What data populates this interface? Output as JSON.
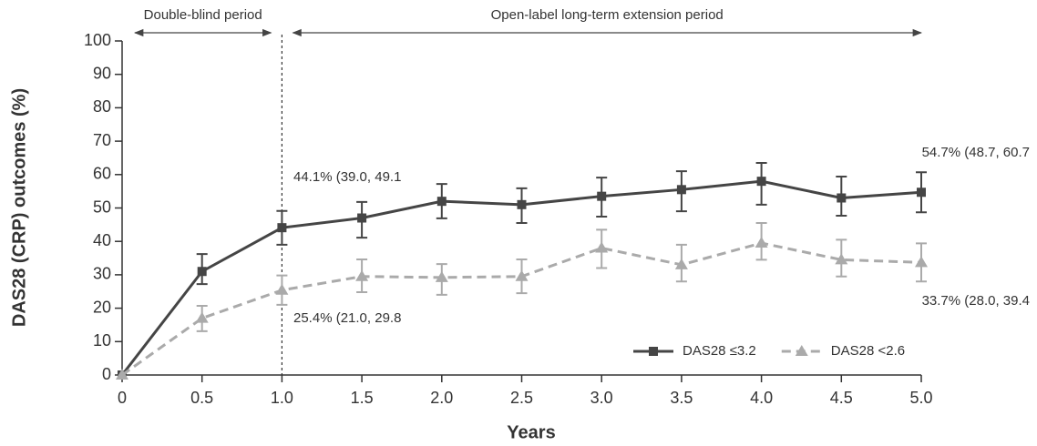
{
  "chart_data": {
    "type": "line",
    "x_label": "Years",
    "y_label": "DAS28 (CRP) outcomes (%)",
    "x": [
      0,
      0.5,
      1,
      1.5,
      2,
      2.5,
      3,
      3.5,
      4,
      4.5,
      5
    ],
    "series": [
      {
        "name": "DAS28 ≤3.2",
        "color": "#454545",
        "marker": "square",
        "dashed": false,
        "values": [
          0,
          31,
          44.1,
          47,
          52,
          51,
          53.5,
          55.5,
          58,
          53,
          54.7
        ],
        "lower": [
          null,
          27.2,
          39.0,
          41.1,
          46.9,
          45.5,
          47.4,
          49,
          51,
          47.7,
          48.7
        ],
        "upper": [
          null,
          36.2,
          49.1,
          51.8,
          57.2,
          55.9,
          59.1,
          61,
          63.5,
          59.4,
          60.7
        ]
      },
      {
        "name": "DAS28 <2.6",
        "color": "#aaaaaa",
        "marker": "triangle",
        "dashed": true,
        "values": [
          0,
          17,
          25.4,
          29.5,
          29.2,
          29.5,
          38,
          33,
          39.5,
          34.5,
          33.7
        ],
        "lower": [
          null,
          13.1,
          21.0,
          24.8,
          24,
          24.5,
          32,
          28,
          34.5,
          29.5,
          28.0
        ],
        "upper": [
          null,
          20.7,
          29.8,
          34.6,
          33.2,
          34.6,
          43.5,
          39,
          45.5,
          40.5,
          39.4
        ]
      }
    ],
    "annotations": [
      "44.1% (39.0, 49.1",
      "25.4% (21.0, 29.8",
      "54.7% (48.7, 60.7",
      "33.7% (28.0, 39.4"
    ],
    "periods": [
      {
        "label": "Double-blind period",
        "start": 0,
        "end": 1
      },
      {
        "label": "Open-label long-term extension period",
        "start": 1,
        "end": 5
      }
    ],
    "vline_x": 1,
    "xlim": [
      0,
      5
    ],
    "xticks": [
      0,
      0.5,
      {
        "value": 1,
        "label": "1.0"
      },
      1.5,
      {
        "value": 2,
        "label": "2.0"
      },
      2.5,
      {
        "value": 3,
        "label": "3.0"
      },
      3.5,
      {
        "value": 4,
        "label": "4.0"
      },
      4.5,
      {
        "value": 5,
        "label": "5.0"
      }
    ],
    "ylim": [
      0,
      100
    ],
    "yticks": [
      0,
      10,
      20,
      30,
      40,
      50,
      60,
      70,
      80,
      90,
      100
    ],
    "legend": "lower right"
  }
}
